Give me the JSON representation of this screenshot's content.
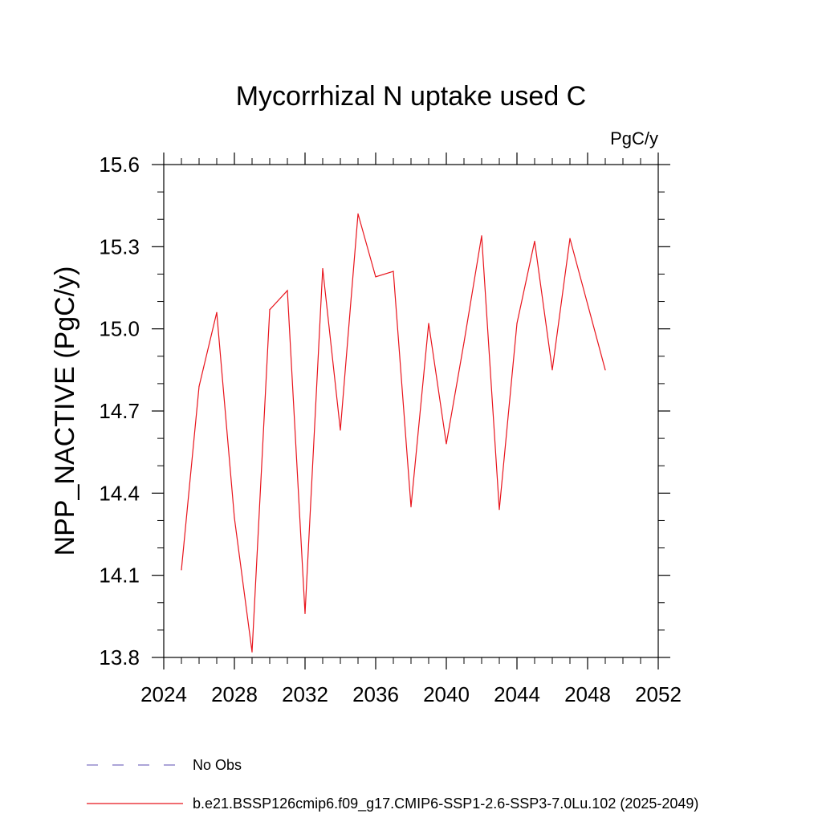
{
  "chart_data": {
    "type": "line",
    "title": "Mycorrhizal N uptake used C",
    "units": "PgC/y",
    "xlabel": "",
    "ylabel": "NPP_NACTIVE  (PgC/y)",
    "xlim": [
      2024,
      2052
    ],
    "ylim": [
      13.8,
      15.6
    ],
    "x_ticks": [
      2024,
      2028,
      2032,
      2036,
      2040,
      2044,
      2048,
      2052
    ],
    "x_tick_labels": [
      "2024",
      "2028",
      "2032",
      "2036",
      "2040",
      "2044",
      "2048",
      "2052"
    ],
    "y_ticks": [
      13.8,
      14.1,
      14.4,
      14.7,
      15.0,
      15.3,
      15.6
    ],
    "y_tick_labels": [
      "13.8",
      "14.1",
      "14.4",
      "14.7",
      "15.0",
      "15.3",
      "15.6"
    ],
    "x_minor_step": 1,
    "y_minor_step": 0.1,
    "grid": false,
    "series": [
      {
        "name": "b.e21.BSSP126cmip6.f09_g17.CMIP6-SSP1-2.6-SSP3-7.0Lu.102 (2025-2049)",
        "color": "#e8141c",
        "x": [
          2025,
          2026,
          2027,
          2028,
          2029,
          2030,
          2031,
          2032,
          2033,
          2034,
          2035,
          2036,
          2037,
          2038,
          2039,
          2040,
          2041,
          2042,
          2043,
          2044,
          2045,
          2046,
          2047,
          2048,
          2049
        ],
        "values": [
          14.12,
          14.79,
          15.06,
          14.31,
          13.82,
          15.07,
          15.14,
          13.96,
          15.22,
          14.63,
          15.42,
          15.19,
          15.21,
          14.35,
          15.02,
          14.58,
          14.95,
          15.34,
          14.34,
          15.02,
          15.32,
          14.85,
          15.33,
          15.09,
          14.85
        ]
      }
    ],
    "legend": {
      "placement": "bottom",
      "entries": [
        {
          "label": "No Obs",
          "style": "dashed",
          "color": "#7a6fc0"
        },
        {
          "label": "b.e21.BSSP126cmip6.f09_g17.CMIP6-SSP1-2.6-SSP3-7.0Lu.102 (2025-2049)",
          "style": "solid",
          "color": "#e8141c"
        }
      ]
    }
  }
}
